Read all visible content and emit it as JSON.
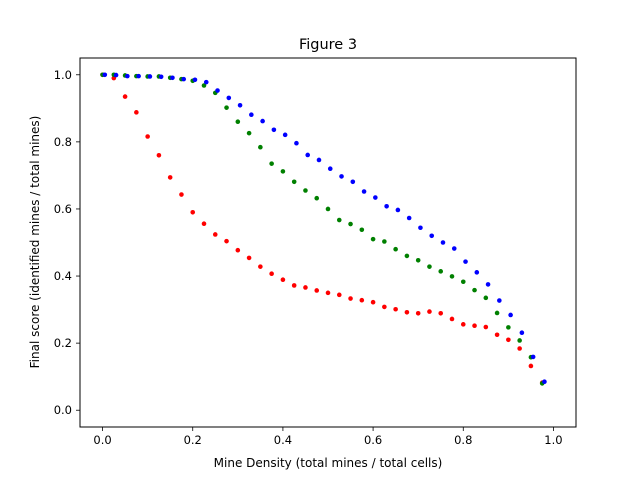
{
  "chart_data": {
    "type": "scatter",
    "title": "Figure 3",
    "xlabel": "Mine Density (total mines / total cells)",
    "ylabel": "Final score (identified mines / total mines)",
    "xlim": [
      -0.05,
      1.05
    ],
    "ylim": [
      -0.05,
      1.05
    ],
    "xticks": [
      "0.0",
      "0.2",
      "0.4",
      "0.6",
      "0.8",
      "1.0"
    ],
    "yticks": [
      "0.0",
      "0.2",
      "0.4",
      "0.6",
      "0.8",
      "1.0"
    ],
    "grid": false,
    "legend": "none",
    "series": [
      {
        "color": "#ff0000",
        "points": [
          [
            0.0,
            1.0
          ],
          [
            0.025,
            0.99
          ],
          [
            0.05,
            0.935
          ],
          [
            0.075,
            0.888
          ],
          [
            0.1,
            0.816
          ],
          [
            0.125,
            0.76
          ],
          [
            0.15,
            0.694
          ],
          [
            0.175,
            0.643
          ],
          [
            0.2,
            0.59
          ],
          [
            0.225,
            0.556
          ],
          [
            0.25,
            0.524
          ],
          [
            0.275,
            0.504
          ],
          [
            0.3,
            0.477
          ],
          [
            0.325,
            0.454
          ],
          [
            0.35,
            0.428
          ],
          [
            0.375,
            0.407
          ],
          [
            0.4,
            0.389
          ],
          [
            0.425,
            0.372
          ],
          [
            0.45,
            0.366
          ],
          [
            0.475,
            0.357
          ],
          [
            0.5,
            0.35
          ],
          [
            0.525,
            0.344
          ],
          [
            0.55,
            0.333
          ],
          [
            0.575,
            0.328
          ],
          [
            0.6,
            0.322
          ],
          [
            0.625,
            0.308
          ],
          [
            0.65,
            0.301
          ],
          [
            0.675,
            0.292
          ],
          [
            0.7,
            0.289
          ],
          [
            0.725,
            0.294
          ],
          [
            0.75,
            0.289
          ],
          [
            0.775,
            0.272
          ],
          [
            0.8,
            0.256
          ],
          [
            0.825,
            0.252
          ],
          [
            0.85,
            0.248
          ],
          [
            0.875,
            0.225
          ],
          [
            0.9,
            0.21
          ],
          [
            0.925,
            0.184
          ],
          [
            0.95,
            0.132
          ],
          [
            0.975,
            0.082
          ]
        ]
      },
      {
        "color": "#008000",
        "points": [
          [
            0.0,
            1.0
          ],
          [
            0.025,
            1.0
          ],
          [
            0.05,
            0.998
          ],
          [
            0.075,
            0.996
          ],
          [
            0.1,
            0.995
          ],
          [
            0.125,
            0.995
          ],
          [
            0.15,
            0.991
          ],
          [
            0.175,
            0.987
          ],
          [
            0.2,
            0.982
          ],
          [
            0.225,
            0.968
          ],
          [
            0.25,
            0.946
          ],
          [
            0.275,
            0.902
          ],
          [
            0.3,
            0.86
          ],
          [
            0.325,
            0.826
          ],
          [
            0.35,
            0.784
          ],
          [
            0.375,
            0.735
          ],
          [
            0.4,
            0.712
          ],
          [
            0.425,
            0.681
          ],
          [
            0.45,
            0.655
          ],
          [
            0.475,
            0.632
          ],
          [
            0.5,
            0.6
          ],
          [
            0.525,
            0.567
          ],
          [
            0.55,
            0.555
          ],
          [
            0.575,
            0.538
          ],
          [
            0.6,
            0.51
          ],
          [
            0.625,
            0.503
          ],
          [
            0.65,
            0.48
          ],
          [
            0.675,
            0.46
          ],
          [
            0.7,
            0.447
          ],
          [
            0.725,
            0.428
          ],
          [
            0.75,
            0.414
          ],
          [
            0.775,
            0.399
          ],
          [
            0.8,
            0.383
          ],
          [
            0.825,
            0.358
          ],
          [
            0.85,
            0.335
          ],
          [
            0.875,
            0.29
          ],
          [
            0.9,
            0.247
          ],
          [
            0.925,
            0.208
          ],
          [
            0.95,
            0.158
          ],
          [
            0.975,
            0.08
          ]
        ]
      },
      {
        "color": "#0000ff",
        "points": [
          [
            0.005,
            1.0
          ],
          [
            0.03,
            0.999
          ],
          [
            0.055,
            0.996
          ],
          [
            0.08,
            0.996
          ],
          [
            0.105,
            0.995
          ],
          [
            0.13,
            0.994
          ],
          [
            0.155,
            0.991
          ],
          [
            0.18,
            0.987
          ],
          [
            0.205,
            0.985
          ],
          [
            0.23,
            0.978
          ],
          [
            0.255,
            0.953
          ],
          [
            0.28,
            0.931
          ],
          [
            0.305,
            0.909
          ],
          [
            0.33,
            0.881
          ],
          [
            0.355,
            0.862
          ],
          [
            0.38,
            0.836
          ],
          [
            0.405,
            0.821
          ],
          [
            0.43,
            0.796
          ],
          [
            0.455,
            0.761
          ],
          [
            0.48,
            0.746
          ],
          [
            0.505,
            0.72
          ],
          [
            0.53,
            0.697
          ],
          [
            0.555,
            0.681
          ],
          [
            0.58,
            0.652
          ],
          [
            0.605,
            0.634
          ],
          [
            0.63,
            0.608
          ],
          [
            0.655,
            0.597
          ],
          [
            0.68,
            0.573
          ],
          [
            0.705,
            0.544
          ],
          [
            0.73,
            0.52
          ],
          [
            0.755,
            0.5
          ],
          [
            0.78,
            0.482
          ],
          [
            0.805,
            0.443
          ],
          [
            0.83,
            0.411
          ],
          [
            0.855,
            0.375
          ],
          [
            0.88,
            0.327
          ],
          [
            0.905,
            0.284
          ],
          [
            0.93,
            0.231
          ],
          [
            0.955,
            0.159
          ],
          [
            0.98,
            0.085
          ]
        ]
      }
    ]
  }
}
